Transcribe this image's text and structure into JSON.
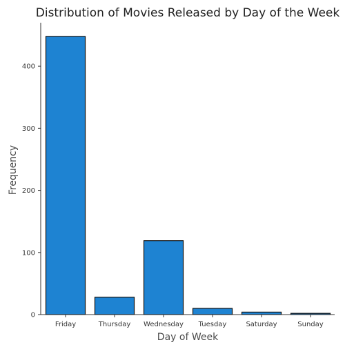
{
  "chart_data": {
    "type": "bar",
    "title": "Distribution of Movies Released by Day of the Week",
    "xlabel": "Day of Week",
    "ylabel": "Frequency",
    "categories": [
      "Friday",
      "Thursday",
      "Wednesday",
      "Tuesday",
      "Saturday",
      "Sunday"
    ],
    "values": [
      448,
      28,
      119,
      10,
      4,
      2
    ],
    "ylim": [
      0,
      470
    ],
    "yticks": [
      "0",
      "100",
      "200",
      "300",
      "400"
    ],
    "grid": false,
    "bar_color": "#1e83d2",
    "bar_edge_color": "#111111"
  }
}
